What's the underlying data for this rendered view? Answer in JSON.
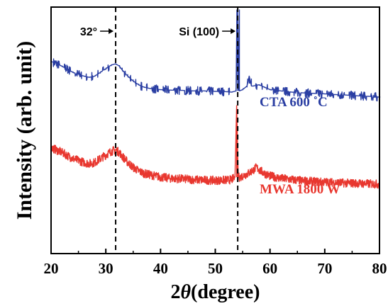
{
  "chart_data": {
    "type": "line",
    "xlabel_prefix": "2",
    "xlabel_symbol": "θ",
    "xlabel_suffix": "(degree)",
    "ylabel": "Intensity (arb. unit)",
    "xlim": [
      20,
      80
    ],
    "xticks": [
      "20",
      "30",
      "40",
      "50",
      "60",
      "70",
      "80"
    ],
    "ylim": [
      0,
      1
    ],
    "y_ticks_shown": false,
    "grid": false,
    "reference_lines": [
      {
        "x": 31.8,
        "label": "32°",
        "style": "dashed"
      },
      {
        "x": 54.1,
        "label": "Si (100)",
        "style": "dashed"
      }
    ],
    "series": [
      {
        "name": "CTA 600 ˚C",
        "color": "#2b3fa3",
        "x": [
          20,
          22,
          24,
          26,
          27,
          28,
          29,
          30,
          31,
          31.8,
          32.5,
          33,
          34,
          35,
          36,
          37,
          38,
          40,
          42,
          44,
          46,
          48,
          50,
          52,
          53,
          53.8,
          54.1,
          54.4,
          55,
          55.8,
          56.2,
          56.6,
          57,
          58,
          59,
          60,
          62,
          64,
          66,
          68,
          70,
          72,
          74,
          76,
          78,
          80
        ],
        "y": [
          0.78,
          0.76,
          0.735,
          0.72,
          0.715,
          0.72,
          0.735,
          0.75,
          0.765,
          0.77,
          0.76,
          0.745,
          0.72,
          0.7,
          0.685,
          0.675,
          0.67,
          0.665,
          0.663,
          0.662,
          0.66,
          0.66,
          0.658,
          0.657,
          0.655,
          0.66,
          0.99,
          0.66,
          0.665,
          0.68,
          0.72,
          0.68,
          0.68,
          0.685,
          0.675,
          0.665,
          0.66,
          0.655,
          0.652,
          0.65,
          0.648,
          0.645,
          0.643,
          0.64,
          0.638,
          0.635
        ]
      },
      {
        "name": "MWA 1800 W",
        "color": "#e8372f",
        "x": [
          20,
          22,
          24,
          26,
          27,
          28,
          29,
          30,
          31,
          31.8,
          32.5,
          33,
          34,
          35,
          36,
          37,
          38,
          40,
          42,
          44,
          46,
          48,
          50,
          52,
          53,
          53.6,
          53.9,
          54.2,
          54.6,
          55,
          56,
          57,
          57.5,
          58,
          59,
          60,
          62,
          64,
          66,
          68,
          70,
          72,
          74,
          76,
          78,
          80
        ],
        "y": [
          0.43,
          0.41,
          0.385,
          0.37,
          0.365,
          0.37,
          0.385,
          0.4,
          0.415,
          0.42,
          0.41,
          0.395,
          0.37,
          0.35,
          0.335,
          0.325,
          0.32,
          0.31,
          0.305,
          0.303,
          0.3,
          0.298,
          0.297,
          0.298,
          0.3,
          0.31,
          0.6,
          0.31,
          0.31,
          0.315,
          0.325,
          0.34,
          0.35,
          0.34,
          0.325,
          0.315,
          0.305,
          0.3,
          0.295,
          0.292,
          0.29,
          0.288,
          0.286,
          0.285,
          0.283,
          0.282
        ]
      }
    ]
  }
}
